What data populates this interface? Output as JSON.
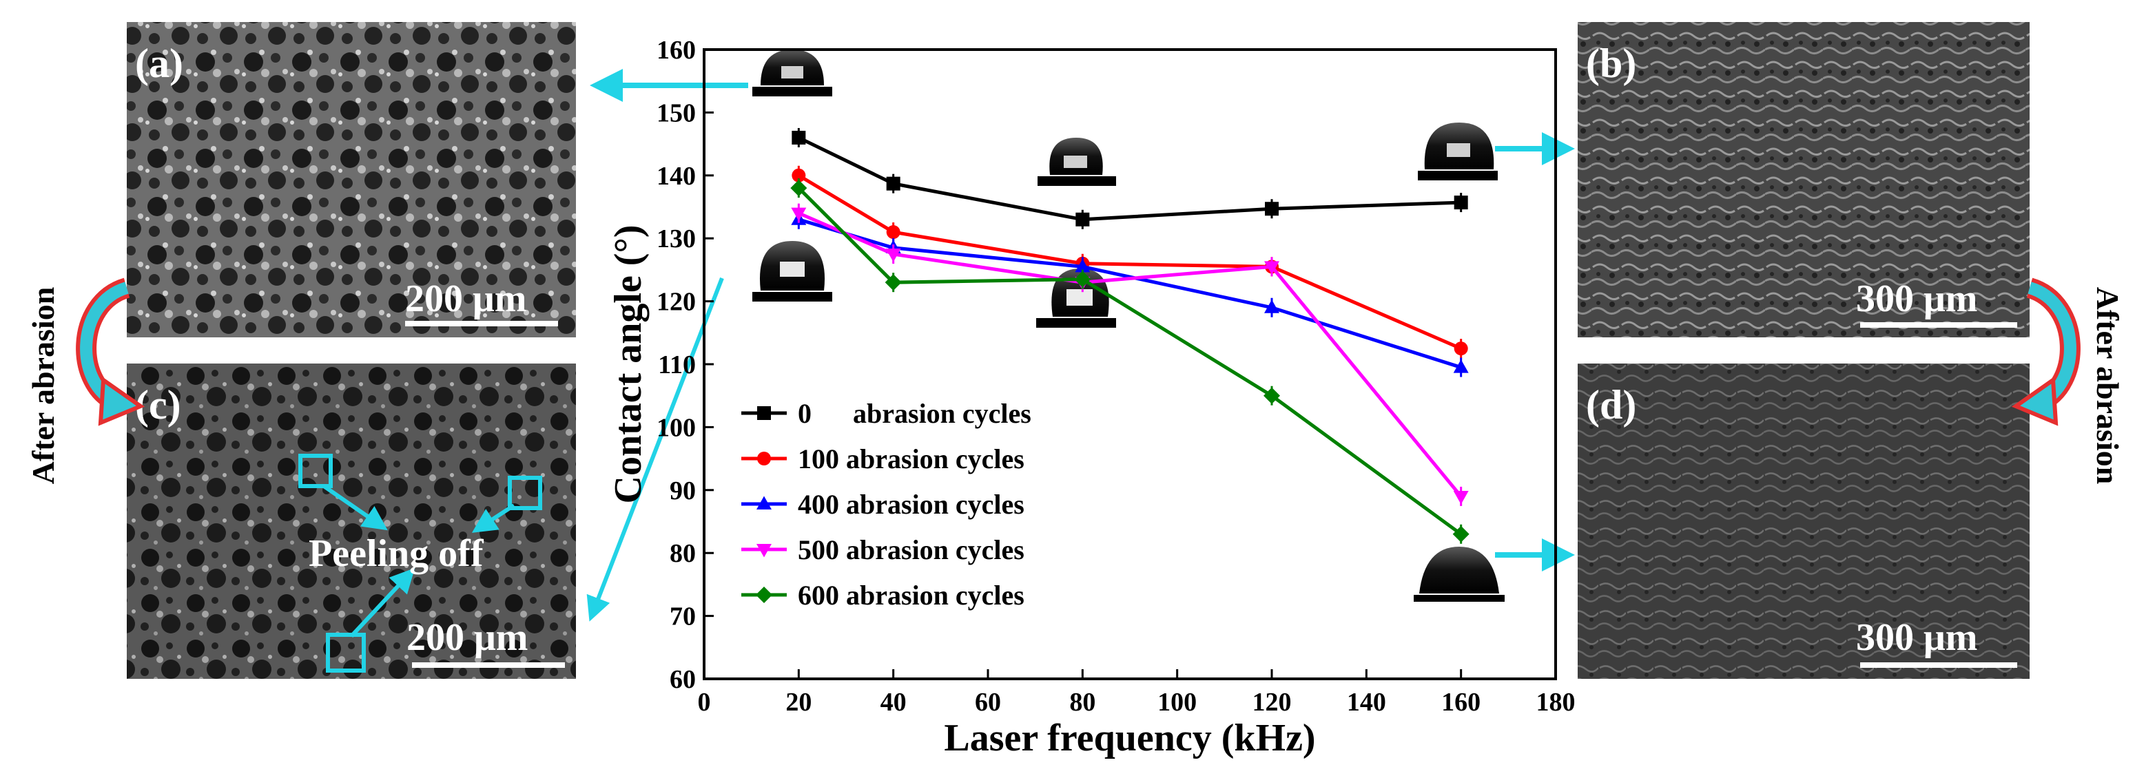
{
  "panels": {
    "a": {
      "label": "(a)",
      "scale": "200 μm"
    },
    "b": {
      "label": "(b)",
      "scale": "300 μm"
    },
    "c": {
      "label": "(c)",
      "scale": "200 μm",
      "annotation": "Peeling off"
    },
    "d": {
      "label": "(d)",
      "scale": "300 μm"
    }
  },
  "side_labels": {
    "left": "After abrasion",
    "right": "After abrasion"
  },
  "colors": {
    "series_0": "#000000",
    "series_100": "#ff0000",
    "series_400": "#0000ff",
    "series_500": "#ff00ff",
    "series_600": "#008000",
    "arrow_cyan": "#22d3e6",
    "curved_arrow_red": "#e53030",
    "curved_arrow_cyan": "#33c6d6"
  },
  "chart_data": {
    "type": "line",
    "xlabel": "Laser frequency (kHz)",
    "ylabel": "Contact angle (°)",
    "xlim": [
      0,
      180
    ],
    "ylim": [
      60,
      160
    ],
    "xticks": [
      0,
      20,
      40,
      60,
      80,
      100,
      120,
      140,
      160,
      180
    ],
    "yticks": [
      60,
      70,
      80,
      90,
      100,
      110,
      120,
      130,
      140,
      150,
      160
    ],
    "x": [
      20,
      40,
      80,
      120,
      160
    ],
    "legend_position": "lower-left",
    "series": [
      {
        "name": "0      abrasion cycles",
        "marker": "square",
        "color": "#000000",
        "values": [
          146,
          138.7,
          133,
          134.7,
          135.7
        ]
      },
      {
        "name": "100 abrasion cycles",
        "marker": "circle",
        "color": "#ff0000",
        "values": [
          140,
          131,
          126,
          125.5,
          112.5
        ]
      },
      {
        "name": "400 abrasion cycles",
        "marker": "triangle-up",
        "color": "#0000ff",
        "values": [
          133,
          128.5,
          125.5,
          119,
          109.5
        ]
      },
      {
        "name": "500 abrasion cycles",
        "marker": "triangle-down",
        "color": "#ff00ff",
        "values": [
          134,
          127.5,
          123,
          125.5,
          89
        ]
      },
      {
        "name": "600 abrasion cycles",
        "marker": "diamond",
        "color": "#008000",
        "values": [
          138,
          123,
          123.5,
          105,
          83
        ]
      }
    ]
  }
}
